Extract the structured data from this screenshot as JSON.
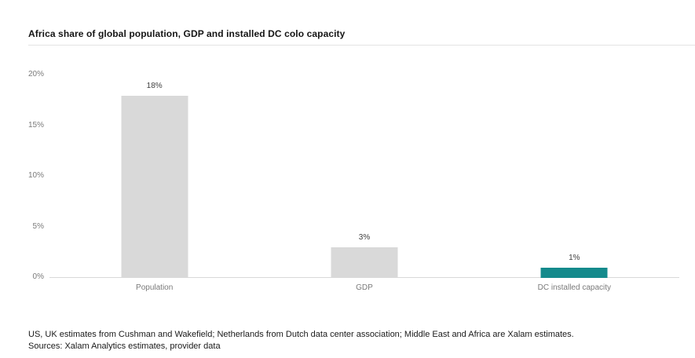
{
  "title": "Africa share of global population, GDP and installed DC colo capacity",
  "chart_data": {
    "type": "bar",
    "title": "Africa share of global population, GDP and installed DC colo capacity",
    "categories": [
      "Population",
      "GDP",
      "DC installed capacity"
    ],
    "values": [
      18,
      3,
      1
    ],
    "value_labels": [
      "18%",
      "3%",
      "1%"
    ],
    "bar_colors": [
      "#d9d9d9",
      "#d9d9d9",
      "#148a8c"
    ],
    "xlabel": "",
    "ylabel": "",
    "ylim": [
      0,
      20
    ],
    "yticks": [
      0,
      5,
      10,
      15,
      20
    ],
    "ytick_labels": [
      "0%",
      "5%",
      "10%",
      "15%",
      "20%"
    ],
    "grid": false,
    "legend": "none"
  },
  "footer": {
    "line1": "US, UK estimates from Cushman and Wakefield; Netherlands from Dutch data center association; Middle East and Africa are Xalam estimates.",
    "line2": "Sources: Xalam Analytics estimates, provider data"
  },
  "colors": {
    "bar_gray": "#d9d9d9",
    "bar_teal": "#148a8c",
    "axis_line": "#d9d9d9",
    "tick_label": "#7a7a7a",
    "value_label": "#404040",
    "title_rule": "#e4e4e4"
  }
}
